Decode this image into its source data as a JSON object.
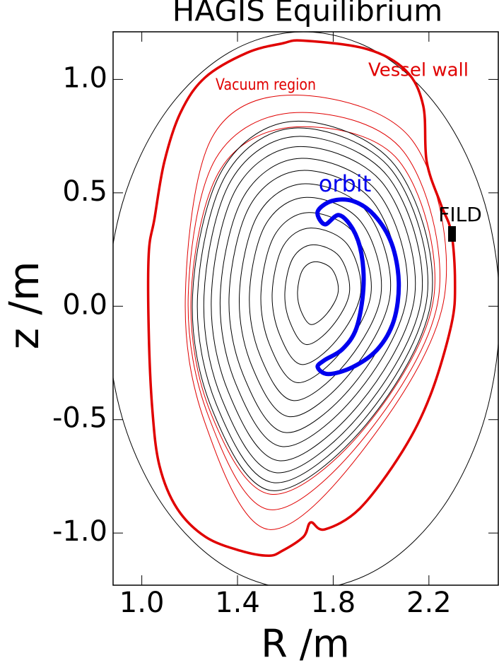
{
  "chart_data": {
    "type": "line",
    "title": "HAGIS Equilibrium",
    "x_label": "R /m",
    "y_label": "z /m",
    "xlim": [
      0.88,
      2.49
    ],
    "ylim": [
      -1.23,
      1.21
    ],
    "xticks": [
      {
        "value": 1.0,
        "label": "1.0"
      },
      1.4,
      1.8,
      2.2
    ],
    "yticks": [
      {
        "value": 1.0,
        "label": "1.0"
      },
      0.5,
      {
        "value": 0.0,
        "label": "0.0"
      },
      -0.5,
      {
        "value": -1.0,
        "label": "-1.0"
      }
    ],
    "annotations": [
      "Vacuum region",
      "Vessel wall",
      "orbit",
      "FILD"
    ],
    "series": [
      {
        "color": "#000000",
        "linewidth": 1,
        "x": [
          2.496,
          2.434,
          2.256,
          1.99,
          1.676,
          1.362,
          1.096,
          0.918,
          0.856,
          0.918,
          1.096,
          1.362,
          1.676,
          1.99,
          2.256,
          2.434
        ],
        "y": [
          -0.02,
          0.451,
          0.85,
          1.117,
          1.21,
          1.117,
          0.85,
          0.451,
          -0.02,
          -0.491,
          -0.89,
          -1.157,
          -1.25,
          -1.157,
          -0.89,
          -0.491
        ]
      },
      {
        "color": "#e00000",
        "linewidth": 1,
        "x": [
          2.265,
          2.132,
          1.647,
          1.294,
          1.182,
          1.265,
          1.529,
          1.941
        ],
        "y": [
          0.044,
          0.729,
          0.931,
          0.745,
          0.044,
          -0.517,
          -0.984,
          -0.611
        ]
      },
      {
        "color": "#e00000",
        "linewidth": 1,
        "x": [
          2.241,
          2.094,
          1.647,
          1.309,
          1.194,
          1.279,
          1.535,
          1.941
        ],
        "y": [
          0.044,
          0.682,
          0.854,
          0.651,
          0.044,
          -0.486,
          -0.897,
          -0.564
        ]
      },
      {
        "color": "#e00000",
        "linewidth": 1,
        "x": [
          2.221,
          2.074,
          1.647,
          1.329,
          1.206,
          1.288,
          1.541,
          1.935
        ],
        "y": [
          0.044,
          0.642,
          0.791,
          0.604,
          0.044,
          -0.47,
          -0.829,
          -0.533
        ]
      },
      {
        "color": "#000000",
        "linewidth": 1,
        "x": [
          1.821,
          1.795,
          1.725,
          1.672,
          1.651,
          1.665,
          1.708,
          1.775
        ],
        "y": [
          0.065,
          0.163,
          0.196,
          0.16,
          0.065,
          -0.02,
          -0.081,
          -0.031
        ]
      },
      {
        "color": "#000000",
        "linewidth": 1,
        "x": [
          1.868,
          1.827,
          1.716,
          1.632,
          1.598,
          1.62,
          1.688,
          1.795
        ],
        "y": [
          0.062,
          0.218,
          0.271,
          0.213,
          0.062,
          -0.072,
          -0.169,
          -0.089
        ]
      },
      {
        "color": "#000000",
        "linewidth": 1,
        "x": [
          1.915,
          1.859,
          1.706,
          1.592,
          1.545,
          1.576,
          1.668,
          1.815
        ],
        "y": [
          0.06,
          0.273,
          0.345,
          0.267,
          0.06,
          -0.125,
          -0.257,
          -0.148
        ]
      },
      {
        "color": "#000000",
        "linewidth": 1,
        "x": [
          1.958,
          1.887,
          1.698,
          1.556,
          1.498,
          1.535,
          1.65,
          1.833
        ],
        "y": [
          0.057,
          0.322,
          0.413,
          0.315,
          0.057,
          -0.172,
          -0.337,
          -0.201
        ]
      },
      {
        "color": "#000000",
        "linewidth": 1,
        "x": [
          2.0,
          1.916,
          1.689,
          1.519,
          1.45,
          1.495,
          1.633,
          1.851
        ],
        "y": [
          0.055,
          0.372,
          0.48,
          0.363,
          0.055,
          -0.219,
          -0.416,
          -0.253
        ]
      },
      {
        "color": "#000000",
        "linewidth": 1,
        "x": [
          2.038,
          1.941,
          1.682,
          1.487,
          1.408,
          1.459,
          1.617,
          1.867
        ],
        "y": [
          0.053,
          0.416,
          0.54,
          0.406,
          0.053,
          -0.261,
          -0.487,
          -0.3
        ]
      },
      {
        "color": "#000000",
        "linewidth": 1,
        "x": [
          2.075,
          1.967,
          1.674,
          1.455,
          1.365,
          1.424,
          1.601,
          1.883
        ],
        "y": [
          0.051,
          0.46,
          0.599,
          0.449,
          0.051,
          -0.303,
          -0.557,
          -0.347
        ]
      },
      {
        "color": "#000000",
        "linewidth": 1,
        "x": [
          2.108,
          1.989,
          1.668,
          1.427,
          1.328,
          1.392,
          1.587,
          1.897
        ],
        "y": [
          0.049,
          0.499,
          0.652,
          0.486,
          0.049,
          -0.34,
          -0.619,
          -0.388
        ]
      },
      {
        "color": "#000000",
        "linewidth": 1,
        "x": [
          2.141,
          2.011,
          1.661,
          1.398,
          1.291,
          1.361,
          1.574,
          1.911
        ],
        "y": [
          0.048,
          0.537,
          0.704,
          0.524,
          0.048,
          -0.376,
          -0.681,
          -0.429
        ]
      },
      {
        "color": "#000000",
        "linewidth": 1,
        "x": [
          2.17,
          2.03,
          1.655,
          1.374,
          1.26,
          1.334,
          1.562,
          1.923
        ],
        "y": [
          0.046,
          0.57,
          0.749,
          0.556,
          0.046,
          -0.408,
          -0.734,
          -0.464
        ]
      },
      {
        "color": "#000000",
        "linewidth": 1,
        "x": [
          2.193,
          2.046,
          1.651,
          1.354,
          1.233,
          1.312,
          1.552,
          1.933
        ],
        "y": [
          0.045,
          0.598,
          0.786,
          0.583,
          0.045,
          -0.434,
          -0.778,
          -0.494
        ]
      },
      {
        "color": "#000000",
        "linewidth": 1,
        "x": [
          2.212,
          2.059,
          1.647,
          1.338,
          1.212,
          1.294,
          1.544,
          1.941
        ],
        "y": [
          0.044,
          0.62,
          0.816,
          0.604,
          0.044,
          -0.455,
          -0.813,
          -0.517
        ]
      },
      {
        "color": "#e00000",
        "linewidth": 3.5,
        "x": [
          1.676,
          1.941,
          2.103,
          2.176,
          2.191,
          2.25,
          2.294,
          2.309,
          2.294,
          2.206,
          2.088,
          1.912,
          1.765,
          1.706,
          1.676,
          1.588,
          1.529,
          1.412,
          1.265,
          1.147,
          1.074,
          1.044,
          1.029,
          1.029,
          1.053,
          1.094,
          1.162,
          1.265,
          1.441,
          1.588
        ],
        "y": [
          1.171,
          1.134,
          1.04,
          0.885,
          0.636,
          0.449,
          0.324,
          0.106,
          -0.081,
          -0.393,
          -0.642,
          -0.891,
          -0.984,
          -0.953,
          -1.016,
          -1.078,
          -1.1,
          -1.078,
          -1.016,
          -0.891,
          -0.704,
          -0.455,
          -0.112,
          0.231,
          0.386,
          0.636,
          0.854,
          1.009,
          1.118,
          1.159
        ]
      },
      {
        "color": "#0000ee",
        "linewidth": 6,
        "x": [
          1.735,
          1.794,
          1.882,
          1.971,
          2.044,
          2.074,
          2.053,
          1.985,
          1.882,
          1.779,
          1.735,
          1.765,
          1.838,
          1.897,
          1.926,
          1.918,
          1.882,
          1.824,
          1.765
        ],
        "y": [
          0.417,
          0.464,
          0.464,
          0.402,
          0.277,
          0.106,
          -0.065,
          -0.19,
          -0.268,
          -0.299,
          -0.268,
          -0.237,
          -0.19,
          -0.097,
          0.075,
          0.231,
          0.34,
          0.402,
          0.361
        ]
      }
    ]
  }
}
